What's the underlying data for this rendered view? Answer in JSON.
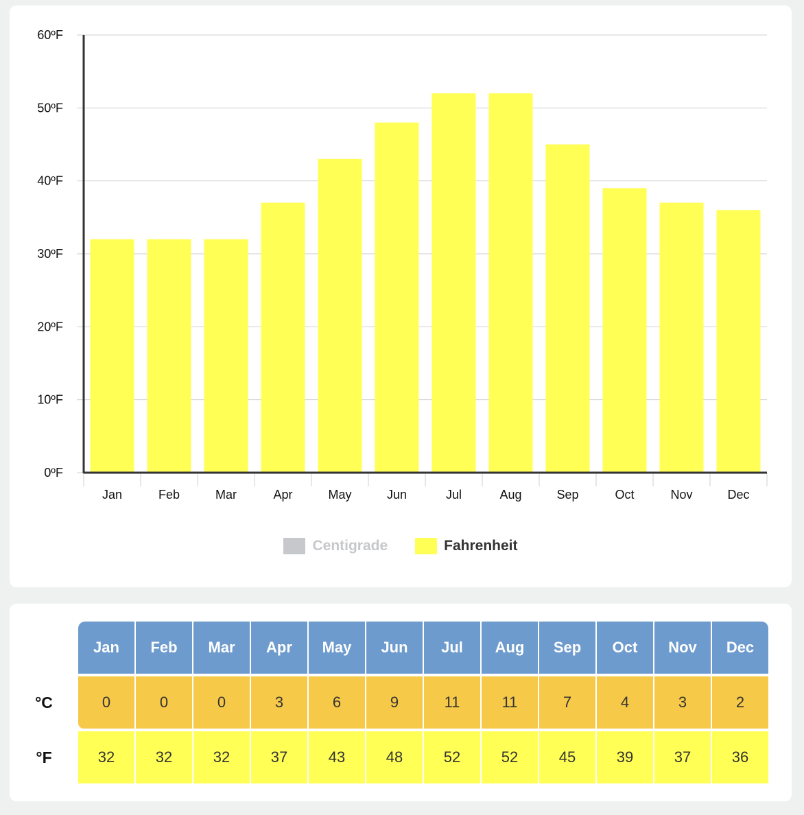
{
  "chart_data": {
    "type": "bar",
    "categories": [
      "Jan",
      "Feb",
      "Mar",
      "Apr",
      "May",
      "Jun",
      "Jul",
      "Aug",
      "Sep",
      "Oct",
      "Nov",
      "Dec"
    ],
    "series": [
      {
        "name": "Fahrenheit",
        "values": [
          32,
          32,
          32,
          37,
          43,
          48,
          52,
          52,
          45,
          39,
          37,
          36
        ],
        "color": "#ffff55"
      }
    ],
    "ylim": [
      0,
      60
    ],
    "yticks": [
      "0ºF",
      "10ºF",
      "20ºF",
      "30ºF",
      "40ºF",
      "50ºF",
      "60ºF"
    ],
    "grid": true
  },
  "legend": {
    "items": [
      {
        "label": "Centigrade",
        "color": "#c6c8cb",
        "active": false
      },
      {
        "label": "Fahrenheit",
        "color": "#ffff55",
        "active": true
      }
    ]
  },
  "table": {
    "months": [
      "Jan",
      "Feb",
      "Mar",
      "Apr",
      "May",
      "Jun",
      "Jul",
      "Aug",
      "Sep",
      "Oct",
      "Nov",
      "Dec"
    ],
    "celsius_label": "°C",
    "fahrenheit_label": "°F",
    "celsius": [
      "0",
      "0",
      "0",
      "3",
      "6",
      "9",
      "11",
      "11",
      "7",
      "4",
      "3",
      "2"
    ],
    "fahrenheit": [
      "32",
      "32",
      "32",
      "37",
      "43",
      "48",
      "52",
      "52",
      "45",
      "39",
      "37",
      "36"
    ]
  }
}
